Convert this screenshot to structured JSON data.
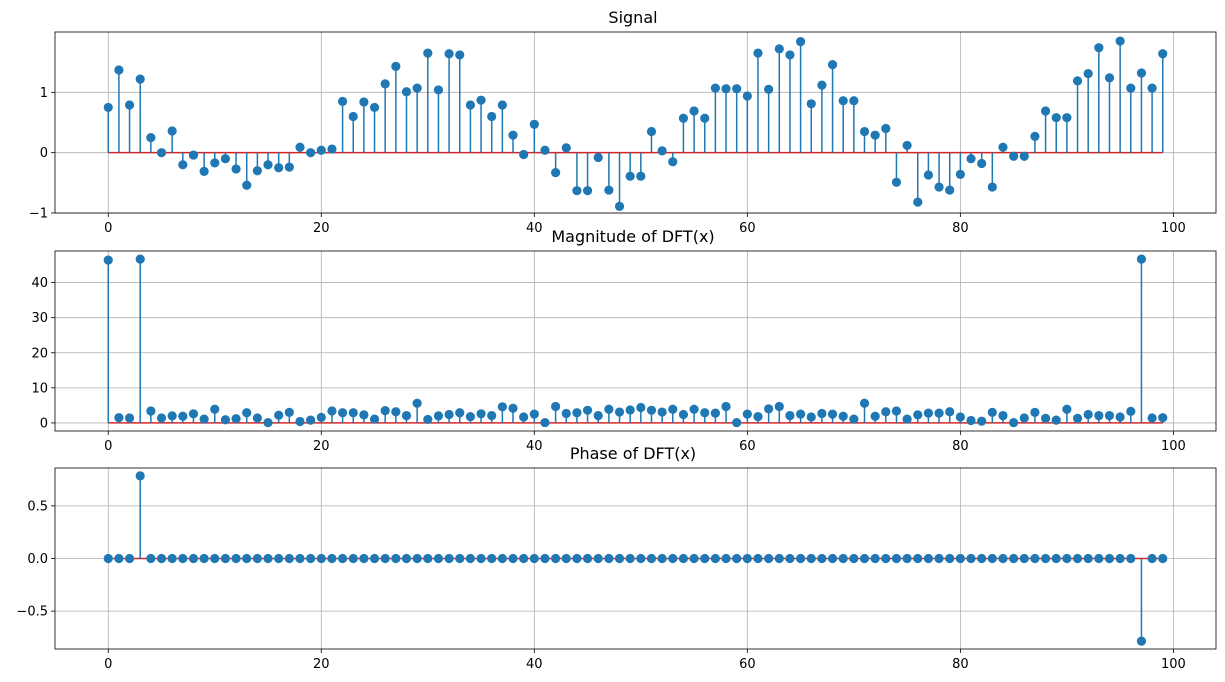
{
  "chart_data": [
    {
      "type": "stem",
      "title": "Signal",
      "xlabel": "",
      "ylabel": "",
      "xlim": [
        -5,
        104
      ],
      "ylim": [
        -1.0,
        2.0
      ],
      "xticks": [
        0,
        20,
        40,
        60,
        80,
        100
      ],
      "yticks": [
        -1,
        0,
        1
      ],
      "grid": true,
      "x": [
        0,
        1,
        2,
        3,
        4,
        5,
        6,
        7,
        8,
        9,
        10,
        11,
        12,
        13,
        14,
        15,
        16,
        17,
        18,
        19,
        20,
        21,
        22,
        23,
        24,
        25,
        26,
        27,
        28,
        29,
        30,
        31,
        32,
        33,
        34,
        35,
        36,
        37,
        38,
        39,
        40,
        41,
        42,
        43,
        44,
        45,
        46,
        47,
        48,
        49,
        50,
        51,
        52,
        53,
        54,
        55,
        56,
        57,
        58,
        59,
        60,
        61,
        62,
        63,
        64,
        65,
        66,
        67,
        68,
        69,
        70,
        71,
        72,
        73,
        74,
        75,
        76,
        77,
        78,
        79,
        80,
        81,
        82,
        83,
        84,
        85,
        86,
        87,
        88,
        89,
        90,
        91,
        92,
        93,
        94,
        95,
        96,
        97,
        98,
        99
      ],
      "values": [
        0.75,
        1.37,
        0.79,
        1.22,
        0.25,
        0.0,
        0.36,
        -0.2,
        -0.04,
        -0.31,
        -0.17,
        -0.1,
        -0.27,
        -0.54,
        -0.3,
        -0.2,
        -0.25,
        -0.24,
        0.09,
        0.0,
        0.04,
        0.06,
        0.85,
        0.6,
        0.84,
        0.75,
        1.14,
        1.43,
        1.01,
        1.07,
        1.65,
        1.04,
        1.64,
        1.62,
        0.79,
        0.87,
        0.6,
        0.79,
        0.29,
        -0.03,
        0.47,
        0.04,
        -0.33,
        0.08,
        -0.63,
        -0.63,
        -0.08,
        -0.62,
        -0.89,
        -0.39,
        -0.39,
        0.35,
        0.03,
        -0.15,
        0.57,
        0.69,
        0.57,
        1.07,
        1.06,
        1.06,
        0.94,
        1.65,
        1.05,
        1.72,
        1.62,
        1.84,
        0.81,
        1.12,
        1.46,
        0.86,
        0.86,
        0.35,
        0.29,
        0.4,
        -0.49,
        0.12,
        -0.82,
        -0.37,
        -0.57,
        -0.62,
        -0.36,
        -0.1,
        -0.18,
        -0.57,
        0.09,
        -0.06,
        -0.06,
        0.27,
        0.69,
        0.58,
        0.58,
        1.19,
        1.31,
        1.74,
        1.24,
        1.85,
        1.07,
        1.32,
        1.07,
        1.64
      ],
      "baseline": 0,
      "colors": {
        "stem": "#1f77b4",
        "marker": "#1f77b4",
        "baseline": "#d62728"
      }
    },
    {
      "type": "stem",
      "title": "Magnitude of DFT(x)",
      "xlabel": "",
      "ylabel": "",
      "xlim": [
        -5,
        104
      ],
      "ylim": [
        -2.3,
        49.0
      ],
      "xticks": [
        0,
        20,
        40,
        60,
        80,
        100
      ],
      "yticks": [
        0,
        10,
        20,
        30,
        40
      ],
      "grid": true,
      "x": [
        0,
        1,
        2,
        3,
        4,
        5,
        6,
        7,
        8,
        9,
        10,
        11,
        12,
        13,
        14,
        15,
        16,
        17,
        18,
        19,
        20,
        21,
        22,
        23,
        24,
        25,
        26,
        27,
        28,
        29,
        30,
        31,
        32,
        33,
        34,
        35,
        36,
        37,
        38,
        39,
        40,
        41,
        42,
        43,
        44,
        45,
        46,
        47,
        48,
        49,
        50,
        51,
        52,
        53,
        54,
        55,
        56,
        57,
        58,
        59,
        60,
        61,
        62,
        63,
        64,
        65,
        66,
        67,
        68,
        69,
        70,
        71,
        72,
        73,
        74,
        75,
        76,
        77,
        78,
        79,
        80,
        81,
        82,
        83,
        84,
        85,
        86,
        87,
        88,
        89,
        90,
        91,
        92,
        93,
        94,
        95,
        96,
        97,
        98,
        99
      ],
      "values": [
        46.4,
        1.5,
        1.4,
        46.7,
        3.4,
        1.4,
        2.0,
        1.9,
        2.6,
        1.1,
        3.9,
        0.9,
        1.2,
        2.9,
        1.4,
        0.1,
        2.2,
        3.0,
        0.4,
        0.8,
        1.6,
        3.4,
        2.9,
        2.9,
        2.3,
        1.1,
        3.5,
        3.2,
        2.1,
        5.6,
        1.0,
        2.0,
        2.4,
        2.9,
        1.8,
        2.6,
        2.1,
        4.6,
        4.2,
        1.7,
        2.5,
        0.1,
        4.7,
        2.7,
        2.9,
        3.6,
        2.1,
        3.9,
        3.1,
        3.7,
        4.4,
        3.6,
        3.1,
        3.9,
        2.4,
        3.9,
        2.9,
        2.8,
        4.7,
        0.1,
        2.5,
        1.8,
        4.0,
        4.7,
        2.1,
        2.5,
        1.7,
        2.7,
        2.5,
        1.9,
        1.1,
        5.6,
        1.9,
        3.2,
        3.4,
        1.1,
        2.3,
        2.8,
        2.8,
        3.2,
        1.7,
        0.7,
        0.5,
        3.0,
        2.1,
        0.1,
        1.4,
        3.0,
        1.3,
        0.8,
        3.9,
        1.3,
        2.4,
        2.1,
        2.1,
        1.7,
        3.3,
        46.7,
        1.4,
        1.5
      ],
      "baseline": 0,
      "colors": {
        "stem": "#1f77b4",
        "marker": "#1f77b4",
        "baseline": "#d62728"
      }
    },
    {
      "type": "stem",
      "title": "Phase of DFT(x)",
      "xlabel": "",
      "ylabel": "",
      "xlim": [
        -5,
        104
      ],
      "ylim": [
        -0.86,
        0.86
      ],
      "xticks": [
        0,
        20,
        40,
        60,
        80,
        100
      ],
      "yticks": [
        -0.5,
        0.0,
        0.5
      ],
      "grid": true,
      "x": [
        0,
        1,
        2,
        3,
        4,
        5,
        6,
        7,
        8,
        9,
        10,
        11,
        12,
        13,
        14,
        15,
        16,
        17,
        18,
        19,
        20,
        21,
        22,
        23,
        24,
        25,
        26,
        27,
        28,
        29,
        30,
        31,
        32,
        33,
        34,
        35,
        36,
        37,
        38,
        39,
        40,
        41,
        42,
        43,
        44,
        45,
        46,
        47,
        48,
        49,
        50,
        51,
        52,
        53,
        54,
        55,
        56,
        57,
        58,
        59,
        60,
        61,
        62,
        63,
        64,
        65,
        66,
        67,
        68,
        69,
        70,
        71,
        72,
        73,
        74,
        75,
        76,
        77,
        78,
        79,
        80,
        81,
        82,
        83,
        84,
        85,
        86,
        87,
        88,
        89,
        90,
        91,
        92,
        93,
        94,
        95,
        96,
        97,
        98,
        99
      ],
      "values": [
        0,
        0,
        0,
        0.785,
        0,
        0,
        0,
        0,
        0,
        0,
        0,
        0,
        0,
        0,
        0,
        0,
        0,
        0,
        0,
        0,
        0,
        0,
        0,
        0,
        0,
        0,
        0,
        0,
        0,
        0,
        0,
        0,
        0,
        0,
        0,
        0,
        0,
        0,
        0,
        0,
        0,
        0,
        0,
        0,
        0,
        0,
        0,
        0,
        0,
        0,
        0,
        0,
        0,
        0,
        0,
        0,
        0,
        0,
        0,
        0,
        0,
        0,
        0,
        0,
        0,
        0,
        0,
        0,
        0,
        0,
        0,
        0,
        0,
        0,
        0,
        0,
        0,
        0,
        0,
        0,
        0,
        0,
        0,
        0,
        0,
        0,
        0,
        0,
        0,
        0,
        0,
        0,
        0,
        0,
        0,
        0,
        0,
        -0.785,
        0,
        0
      ],
      "baseline": 0,
      "colors": {
        "stem": "#1f77b4",
        "marker": "#1f77b4",
        "baseline": "#d62728"
      }
    }
  ]
}
